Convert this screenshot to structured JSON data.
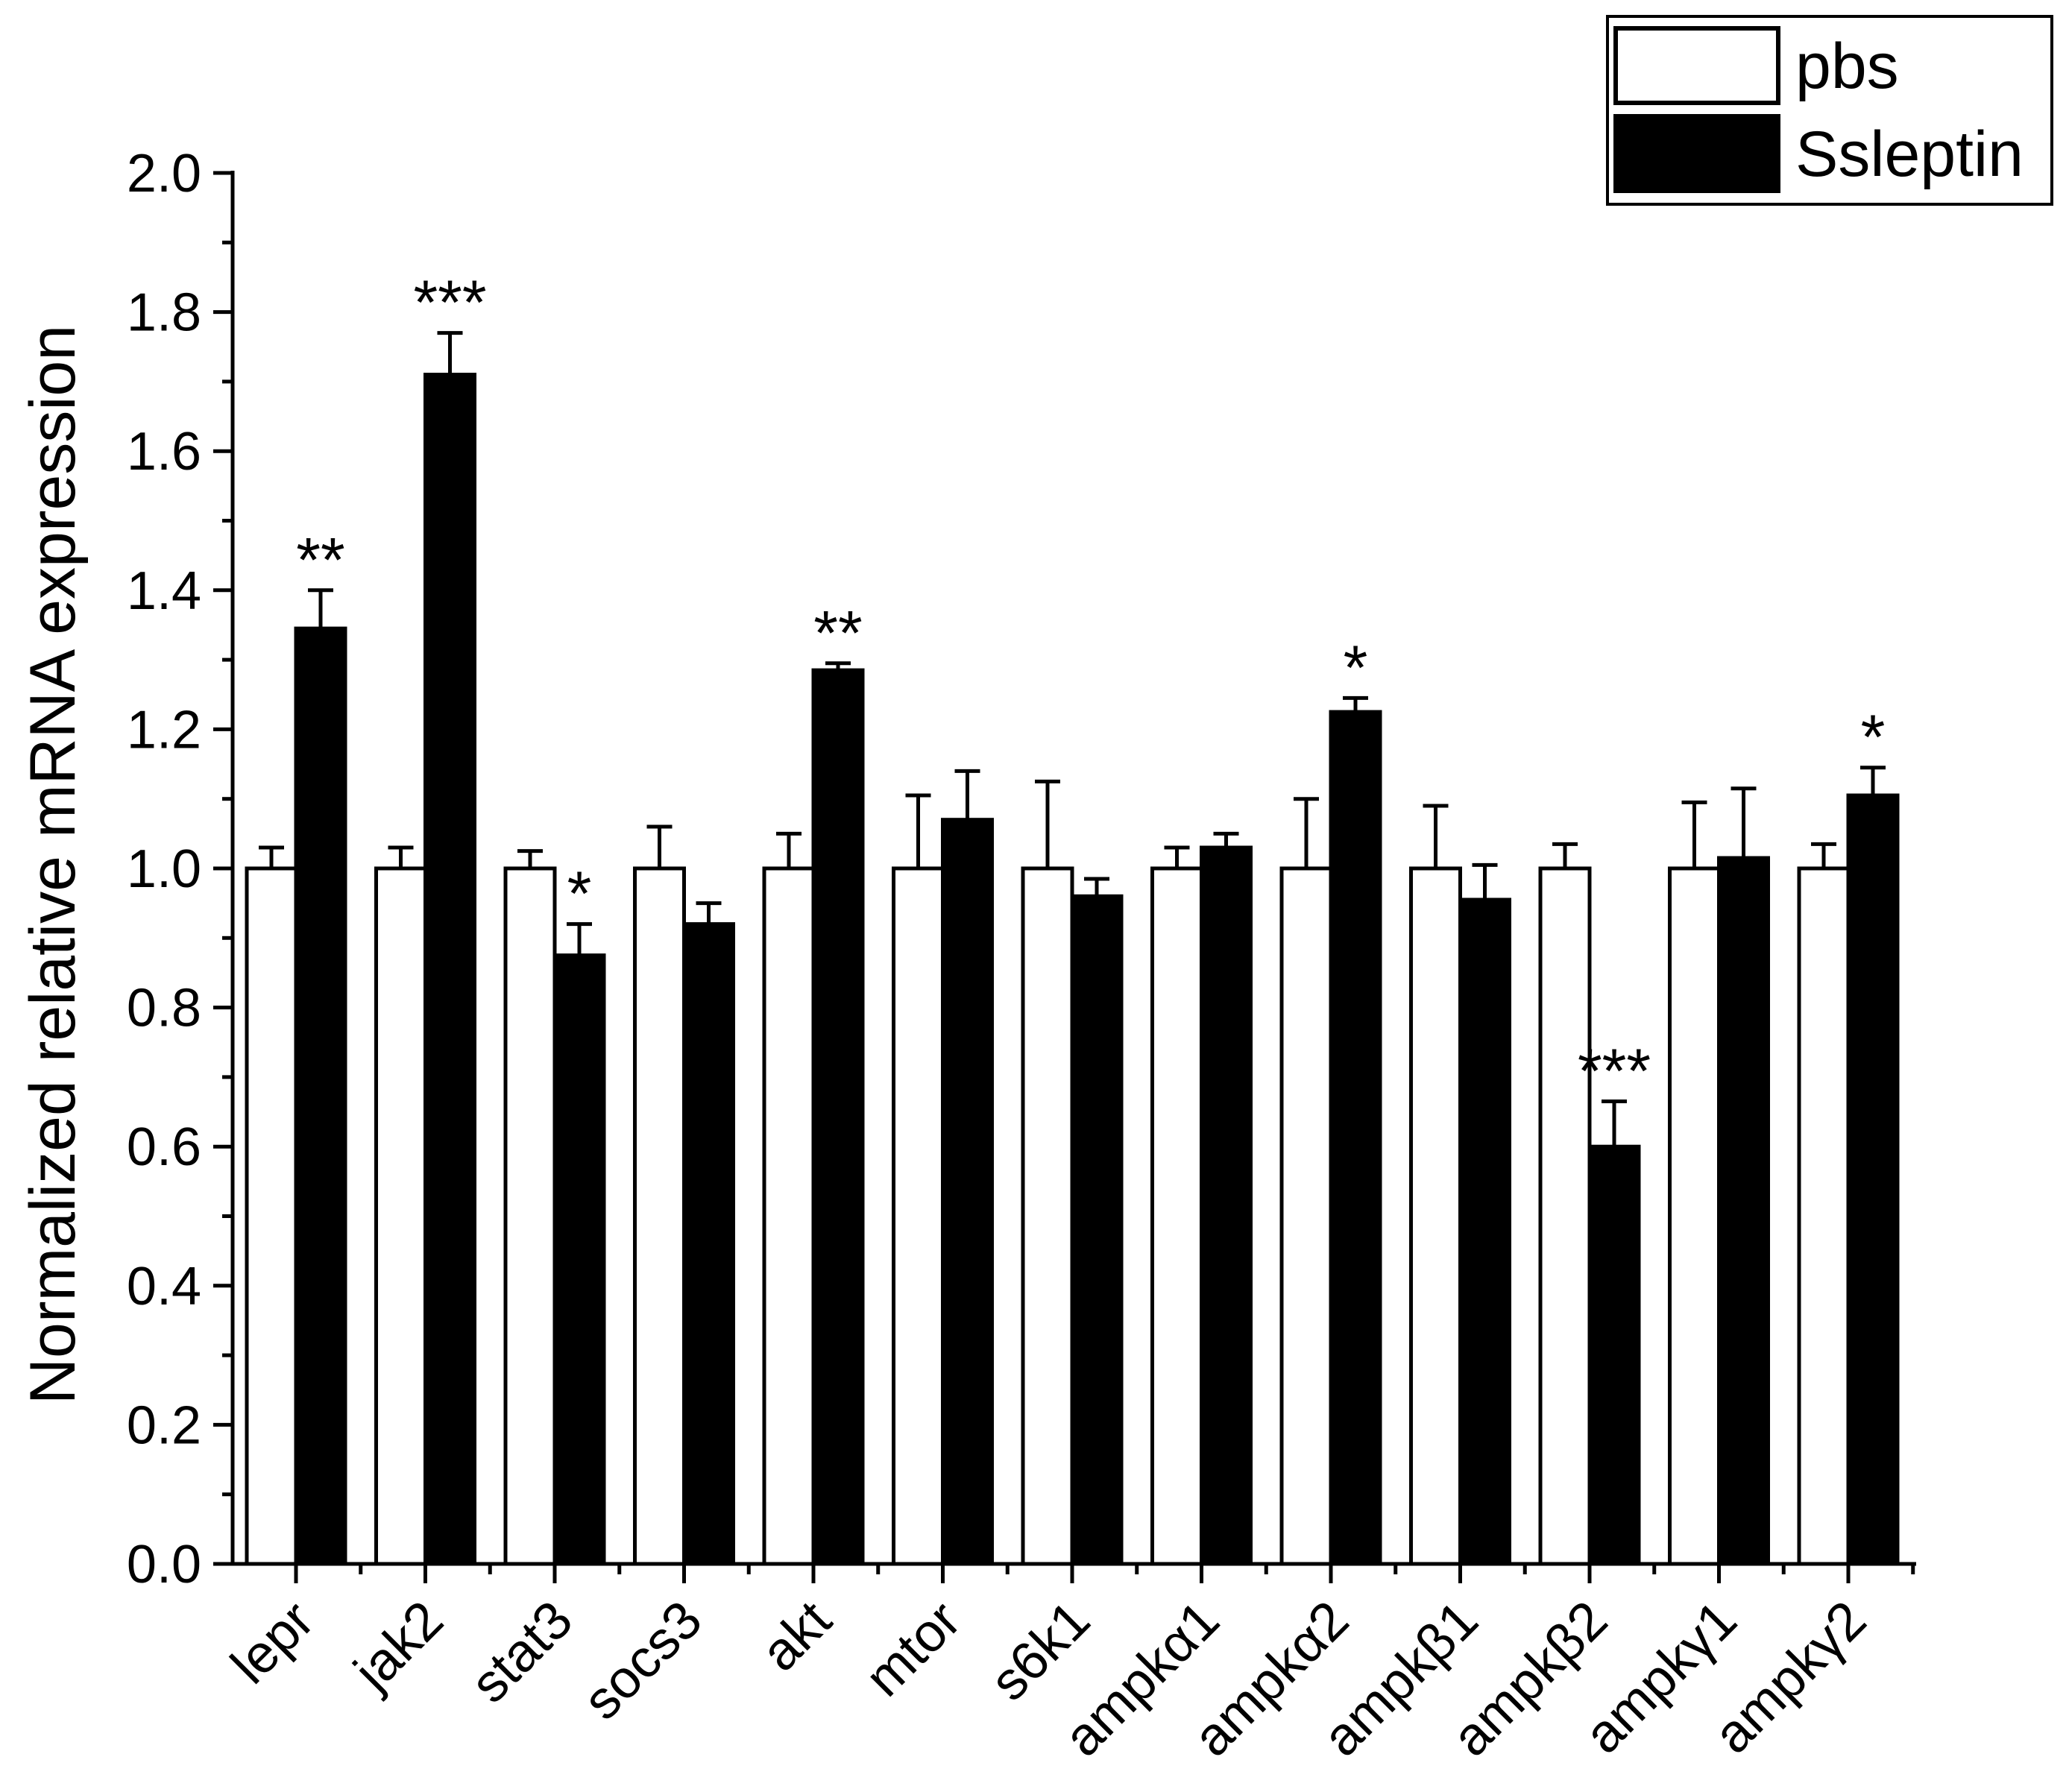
{
  "chart_data": {
    "type": "bar",
    "title": "",
    "xlabel": "",
    "ylabel": "Normalized relative mRNA expression",
    "ylim": [
      0,
      2.0
    ],
    "yticks": [
      0.0,
      0.2,
      0.4,
      0.6,
      0.8,
      1.0,
      1.2,
      1.4,
      1.6,
      1.8,
      2.0
    ],
    "ytick_labels": [
      "0.0",
      "0.2",
      "0.4",
      "0.6",
      "0.8",
      "1.0",
      "1.2",
      "1.4",
      "1.6",
      "1.8",
      "2.0"
    ],
    "categories": [
      "lepr",
      "jak2",
      "stat3",
      "socs3",
      "akt",
      "mtor",
      "s6k1",
      "ampkα1",
      "ampkα2",
      "ampkβ1",
      "ampkβ2",
      "ampkγ1",
      "ampkγ2"
    ],
    "series": [
      {
        "name": "pbs",
        "color": "#ffffff",
        "values": [
          1.0,
          1.0,
          1.0,
          1.0,
          1.0,
          1.0,
          1.0,
          1.0,
          1.0,
          1.0,
          1.0,
          1.0,
          1.0
        ],
        "errors": [
          0.03,
          0.03,
          0.025,
          0.06,
          0.05,
          0.105,
          0.125,
          0.03,
          0.1,
          0.09,
          0.035,
          0.095,
          0.035
        ]
      },
      {
        "name": "Ssleptin",
        "color": "#000000",
        "values": [
          1.345,
          1.71,
          0.875,
          0.92,
          1.285,
          1.07,
          0.96,
          1.03,
          1.225,
          0.955,
          0.6,
          1.015,
          1.105
        ],
        "errors": [
          0.055,
          0.06,
          0.045,
          0.03,
          0.01,
          0.07,
          0.025,
          0.02,
          0.02,
          0.05,
          0.065,
          0.1,
          0.04
        ]
      }
    ],
    "significance": [
      "**",
      "***",
      "*",
      "",
      "**",
      "",
      "",
      "",
      "*",
      "",
      "***",
      "",
      "*"
    ],
    "legend": {
      "position": "top-right",
      "entries": [
        "pbs",
        "Ssleptin"
      ]
    },
    "grid": false
  }
}
